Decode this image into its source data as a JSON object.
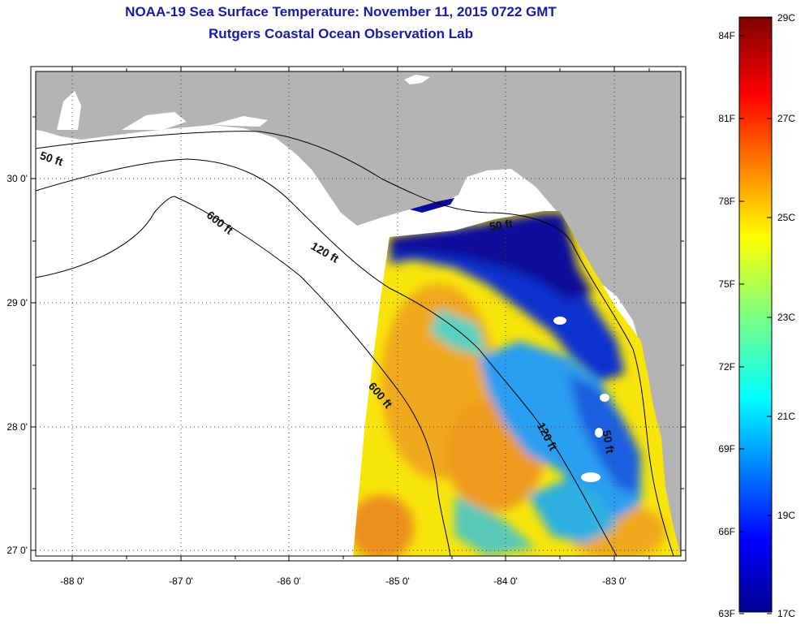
{
  "header": {
    "title": "NOAA-19 Sea Surface Temperature:  November 11, 2015 0722 GMT",
    "subtitle": "Rutgers Coastal Ocean Observation Lab"
  },
  "map": {
    "lon_ticks": [
      "-88 0'",
      "-87 0'",
      "-86 0'",
      "-85 0'",
      "-84 0'",
      "-83 0'"
    ],
    "lat_ticks": [
      "30 0'",
      "29 0'",
      "28 0'",
      "27 0'"
    ],
    "contours": [
      {
        "label": "50 ft"
      },
      {
        "label": "600 ft"
      },
      {
        "label": "120 ft"
      },
      {
        "label": "50 ft"
      },
      {
        "label": "600 ft"
      },
      {
        "label": "120 ft"
      },
      {
        "label": "50 ft"
      }
    ]
  },
  "colorbar": {
    "fahrenheit": [
      "84F",
      "81F",
      "78F",
      "75F",
      "72F",
      "69F",
      "66F",
      "63F"
    ],
    "celsius": [
      "29C",
      "27C",
      "25C",
      "23C",
      "21C",
      "19C",
      "17C"
    ]
  },
  "colors": {
    "land": "#b4b4b4",
    "cloud": "#ffffff",
    "title": "#1a1aa8"
  }
}
